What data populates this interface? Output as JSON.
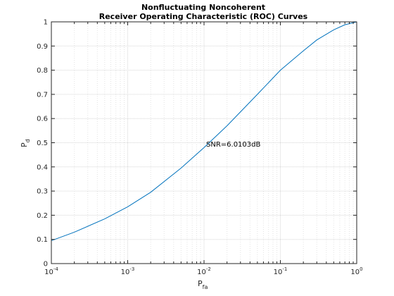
{
  "chart_data": {
    "type": "line",
    "title_line1": "Nonfluctuating Noncoherent",
    "title_line2": "Receiver Operating Characteristic (ROC) Curves",
    "xlabel": {
      "main": "P",
      "sub": "fa"
    },
    "ylabel": {
      "main": "P",
      "sub": "d"
    },
    "xscale": "log",
    "xlim": [
      0.0001,
      1
    ],
    "ylim": [
      0,
      1
    ],
    "x_ticks": [
      {
        "base": "10",
        "exp": "-4"
      },
      {
        "base": "10",
        "exp": "-3"
      },
      {
        "base": "10",
        "exp": "-2"
      },
      {
        "base": "10",
        "exp": "-1"
      },
      {
        "base": "10",
        "exp": "0"
      }
    ],
    "y_ticks": [
      "0",
      "0.1",
      "0.2",
      "0.3",
      "0.4",
      "0.5",
      "0.6",
      "0.7",
      "0.8",
      "0.9",
      "1"
    ],
    "grid": true,
    "minor_grid": true,
    "line_color": "#0072bd",
    "series": [
      {
        "x": [
          0.0001,
          0.0002,
          0.0005,
          0.001,
          0.002,
          0.005,
          0.01,
          0.02,
          0.05,
          0.1,
          0.2,
          0.3,
          0.5,
          0.7,
          1.0
        ],
        "y": [
          0.095,
          0.13,
          0.185,
          0.235,
          0.295,
          0.395,
          0.48,
          0.57,
          0.7,
          0.8,
          0.88,
          0.925,
          0.967,
          0.988,
          1.0
        ]
      }
    ],
    "annotation": {
      "text": "SNR=6.0103dB",
      "x": 0.0115,
      "y": 0.49
    }
  }
}
